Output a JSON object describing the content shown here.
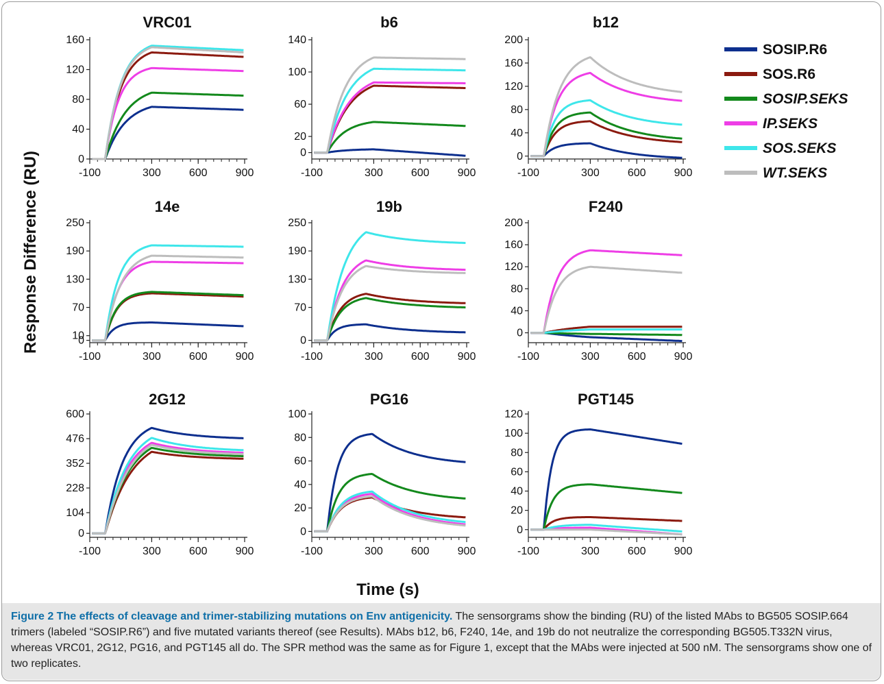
{
  "figure": {
    "ylabel": "Response Difference (RU)",
    "xlabel": "Time (s)"
  },
  "legend": {
    "entries": [
      {
        "label": "SOSIP.R6",
        "color": "#0d2f8e",
        "italic": false
      },
      {
        "label": "SOS.R6",
        "color": "#8b1a0f",
        "italic": false
      },
      {
        "label": "SOSIP.SEKS",
        "color": "#13891c",
        "italic": true
      },
      {
        "label": "IP.SEKS",
        "color": "#ee3ee6",
        "italic": true
      },
      {
        "label": "SOS.SEKS",
        "color": "#3ee6ea",
        "italic": true
      },
      {
        "label": "WT.SEKS",
        "color": "#bdbdbd",
        "italic": true
      }
    ]
  },
  "chart_data": [
    {
      "type": "line",
      "title": "VRC01",
      "xticks": [
        -100,
        300,
        600,
        900
      ],
      "yticks": [
        0,
        40,
        80,
        120,
        160
      ],
      "xlim": [
        -100,
        900
      ],
      "ylim": [
        0,
        160
      ],
      "series": [
        {
          "name": "SOSIP.R6",
          "shape": "plateau",
          "start": -20,
          "peak_t": 300,
          "peak": 70,
          "end": 66,
          "hl": 90
        },
        {
          "name": "SOS.R6",
          "shape": "plateau",
          "start": -20,
          "peak_t": 300,
          "peak": 143,
          "end": 137,
          "hl": 70
        },
        {
          "name": "SOSIP.SEKS",
          "shape": "plateau",
          "start": -20,
          "peak_t": 300,
          "peak": 89,
          "end": 85,
          "hl": 90
        },
        {
          "name": "IP.SEKS",
          "shape": "plateau",
          "start": -20,
          "peak_t": 300,
          "peak": 122,
          "end": 118,
          "hl": 60
        },
        {
          "name": "SOS.SEKS",
          "shape": "plateau",
          "start": -20,
          "peak_t": 300,
          "peak": 152,
          "end": 146,
          "hl": 70
        },
        {
          "name": "WT.SEKS",
          "shape": "plateau",
          "start": -20,
          "peak_t": 300,
          "peak": 150,
          "end": 143,
          "hl": 70
        }
      ]
    },
    {
      "type": "line",
      "title": "b6",
      "xticks": [
        -100,
        300,
        600,
        900
      ],
      "yticks": [
        0,
        20,
        60,
        100,
        140
      ],
      "xlim": [
        -100,
        900
      ],
      "ylim": [
        -8,
        140
      ],
      "series": [
        {
          "name": "SOSIP.R6",
          "shape": "plateau",
          "start": 20,
          "peak_t": 300,
          "peak": 4,
          "end": -4,
          "hl": 90
        },
        {
          "name": "SOS.R6",
          "shape": "plateau",
          "start": 20,
          "peak_t": 300,
          "peak": 83,
          "end": 80,
          "hl": 100
        },
        {
          "name": "SOSIP.SEKS",
          "shape": "plateau",
          "start": 20,
          "peak_t": 300,
          "peak": 38,
          "end": 33,
          "hl": 80
        },
        {
          "name": "IP.SEKS",
          "shape": "plateau",
          "start": 20,
          "peak_t": 300,
          "peak": 87,
          "end": 86,
          "hl": 100
        },
        {
          "name": "SOS.SEKS",
          "shape": "plateau",
          "start": 20,
          "peak_t": 300,
          "peak": 104,
          "end": 102,
          "hl": 90
        },
        {
          "name": "WT.SEKS",
          "shape": "plateau",
          "start": 20,
          "peak_t": 300,
          "peak": 118,
          "end": 116,
          "hl": 80
        }
      ]
    },
    {
      "type": "line",
      "title": "b12",
      "xticks": [
        -100,
        300,
        600,
        900
      ],
      "yticks": [
        0,
        40,
        80,
        120,
        160,
        200
      ],
      "xlim": [
        -100,
        900
      ],
      "ylim": [
        -5,
        200
      ],
      "series": [
        {
          "name": "SOSIP.R6",
          "shape": "decay",
          "start": -20,
          "peak_t": 300,
          "peak": 22,
          "end": -3,
          "hl": 50
        },
        {
          "name": "SOS.R6",
          "shape": "decay",
          "start": -20,
          "peak_t": 300,
          "peak": 60,
          "end": 24,
          "hl": 50
        },
        {
          "name": "SOSIP.SEKS",
          "shape": "decay",
          "start": -20,
          "peak_t": 300,
          "peak": 75,
          "end": 30,
          "hl": 50
        },
        {
          "name": "IP.SEKS",
          "shape": "decay",
          "start": -20,
          "peak_t": 300,
          "peak": 143,
          "end": 95,
          "hl": 60
        },
        {
          "name": "SOS.SEKS",
          "shape": "decay",
          "start": -20,
          "peak_t": 300,
          "peak": 96,
          "end": 54,
          "hl": 50
        },
        {
          "name": "WT.SEKS",
          "shape": "decay",
          "start": -20,
          "peak_t": 300,
          "peak": 170,
          "end": 110,
          "hl": 70
        }
      ]
    },
    {
      "type": "line",
      "title": "14e",
      "xticks": [
        -100,
        300,
        600,
        900
      ],
      "yticks": [
        0,
        10,
        70,
        130,
        190,
        250
      ],
      "xlim": [
        -100,
        900
      ],
      "ylim": [
        -5,
        250
      ],
      "series": [
        {
          "name": "SOSIP.R6",
          "shape": "plateau",
          "start": 20,
          "peak_t": 300,
          "peak": 38,
          "end": 30,
          "hl": 40
        },
        {
          "name": "SOS.R6",
          "shape": "plateau",
          "start": 20,
          "peak_t": 300,
          "peak": 100,
          "end": 93,
          "hl": 50
        },
        {
          "name": "SOSIP.SEKS",
          "shape": "plateau",
          "start": 20,
          "peak_t": 300,
          "peak": 103,
          "end": 96,
          "hl": 50
        },
        {
          "name": "IP.SEKS",
          "shape": "plateau",
          "start": 20,
          "peak_t": 300,
          "peak": 167,
          "end": 164,
          "hl": 60
        },
        {
          "name": "SOS.SEKS",
          "shape": "plateau",
          "start": 20,
          "peak_t": 300,
          "peak": 202,
          "end": 199,
          "hl": 60
        },
        {
          "name": "WT.SEKS",
          "shape": "plateau",
          "start": 20,
          "peak_t": 300,
          "peak": 180,
          "end": 176,
          "hl": 70
        }
      ]
    },
    {
      "type": "line",
      "title": "19b",
      "xticks": [
        -100,
        300,
        600,
        900
      ],
      "yticks": [
        0,
        70,
        130,
        190,
        250
      ],
      "xlim": [
        -100,
        900
      ],
      "ylim": [
        -5,
        250
      ],
      "series": [
        {
          "name": "SOSIP.R6",
          "shape": "decay",
          "start": 0,
          "peak_t": 250,
          "peak": 34,
          "end": 17,
          "hl": 40
        },
        {
          "name": "SOS.R6",
          "shape": "decay",
          "start": 0,
          "peak_t": 250,
          "peak": 99,
          "end": 79,
          "hl": 60
        },
        {
          "name": "SOSIP.SEKS",
          "shape": "decay",
          "start": 0,
          "peak_t": 250,
          "peak": 90,
          "end": 70,
          "hl": 60
        },
        {
          "name": "IP.SEKS",
          "shape": "decay",
          "start": 0,
          "peak_t": 250,
          "peak": 170,
          "end": 150,
          "hl": 70
        },
        {
          "name": "SOS.SEKS",
          "shape": "decay",
          "start": 0,
          "peak_t": 250,
          "peak": 230,
          "end": 207,
          "hl": 80
        },
        {
          "name": "WT.SEKS",
          "shape": "decay",
          "start": 0,
          "peak_t": 250,
          "peak": 158,
          "end": 143,
          "hl": 70
        }
      ]
    },
    {
      "type": "line",
      "title": "F240",
      "xticks": [
        -100,
        300,
        600,
        900
      ],
      "yticks": [
        0,
        40,
        80,
        120,
        160,
        200
      ],
      "xlim": [
        -100,
        900
      ],
      "ylim": [
        -18,
        200
      ],
      "series": [
        {
          "name": "SOSIP.R6",
          "shape": "plateau",
          "start": 10,
          "peak_t": 300,
          "peak": -8,
          "end": -15,
          "hl": 300
        },
        {
          "name": "SOS.R6",
          "shape": "plateau",
          "start": 10,
          "peak_t": 300,
          "peak": 11,
          "end": 11,
          "hl": 200
        },
        {
          "name": "SOSIP.SEKS",
          "shape": "plateau",
          "start": 10,
          "peak_t": 300,
          "peak": -2,
          "end": -4,
          "hl": 200
        },
        {
          "name": "IP.SEKS",
          "shape": "plateau",
          "start": 10,
          "peak_t": 300,
          "peak": 150,
          "end": 141,
          "hl": 60
        },
        {
          "name": "SOS.SEKS",
          "shape": "plateau",
          "start": 10,
          "peak_t": 300,
          "peak": 6,
          "end": 6,
          "hl": 200
        },
        {
          "name": "WT.SEKS",
          "shape": "plateau",
          "start": 10,
          "peak_t": 300,
          "peak": 120,
          "end": 109,
          "hl": 60
        }
      ]
    },
    {
      "type": "line",
      "title": "2G12",
      "xticks": [
        -100,
        300,
        600,
        900
      ],
      "yticks": [
        0,
        104,
        228,
        352,
        476,
        600
      ],
      "xlim": [
        -100,
        900
      ],
      "ylim": [
        -20,
        600
      ],
      "series": [
        {
          "name": "SOSIP.R6",
          "shape": "decay",
          "start": 20,
          "peak_t": 300,
          "peak": 530,
          "end": 478,
          "hl": 80
        },
        {
          "name": "SOS.R6",
          "shape": "decay",
          "start": 20,
          "peak_t": 300,
          "peak": 410,
          "end": 375,
          "hl": 120
        },
        {
          "name": "SOSIP.SEKS",
          "shape": "decay",
          "start": 20,
          "peak_t": 300,
          "peak": 430,
          "end": 388,
          "hl": 110
        },
        {
          "name": "IP.SEKS",
          "shape": "decay",
          "start": 20,
          "peak_t": 300,
          "peak": 455,
          "end": 405,
          "hl": 100
        },
        {
          "name": "SOS.SEKS",
          "shape": "decay",
          "start": 20,
          "peak_t": 300,
          "peak": 480,
          "end": 418,
          "hl": 100
        },
        {
          "name": "WT.SEKS",
          "shape": "decay",
          "start": 20,
          "peak_t": 300,
          "peak": 445,
          "end": 398,
          "hl": 110
        }
      ]
    },
    {
      "type": "line",
      "title": "PG16",
      "xticks": [
        -100,
        300,
        600,
        900
      ],
      "yticks": [
        0,
        20,
        40,
        60,
        80,
        100
      ],
      "xlim": [
        -100,
        900
      ],
      "ylim": [
        -5,
        100
      ],
      "series": [
        {
          "name": "SOSIP.R6",
          "shape": "decay",
          "start": 20,
          "peak_t": 290,
          "peak": 83,
          "end": 59,
          "hl": 45
        },
        {
          "name": "SOS.R6",
          "shape": "decay",
          "start": 20,
          "peak_t": 290,
          "peak": 29,
          "end": 12,
          "hl": 60
        },
        {
          "name": "SOSIP.SEKS",
          "shape": "decay",
          "start": 20,
          "peak_t": 290,
          "peak": 49,
          "end": 28,
          "hl": 50
        },
        {
          "name": "IP.SEKS",
          "shape": "decay",
          "start": 20,
          "peak_t": 290,
          "peak": 32,
          "end": 6,
          "hl": 60
        },
        {
          "name": "SOS.SEKS",
          "shape": "decay",
          "start": 20,
          "peak_t": 290,
          "peak": 34,
          "end": 8,
          "hl": 60
        },
        {
          "name": "WT.SEKS",
          "shape": "decay",
          "start": 20,
          "peak_t": 290,
          "peak": 30,
          "end": 5,
          "hl": 60
        }
      ]
    },
    {
      "type": "line",
      "title": "PGT145",
      "xticks": [
        -100,
        300,
        600,
        900
      ],
      "yticks": [
        0,
        20,
        40,
        60,
        80,
        100,
        120
      ],
      "xlim": [
        -100,
        900
      ],
      "ylim": [
        -8,
        120
      ],
      "series": [
        {
          "name": "SOSIP.R6",
          "shape": "plateau",
          "start": 5,
          "peak_t": 300,
          "peak": 104,
          "end": 89,
          "hl": 35
        },
        {
          "name": "SOS.R6",
          "shape": "plateau",
          "start": 5,
          "peak_t": 300,
          "peak": 13,
          "end": 9,
          "hl": 40
        },
        {
          "name": "SOSIP.SEKS",
          "shape": "plateau",
          "start": 5,
          "peak_t": 300,
          "peak": 47,
          "end": 38,
          "hl": 40
        },
        {
          "name": "IP.SEKS",
          "shape": "plateau",
          "start": 5,
          "peak_t": 300,
          "peak": 2,
          "end": -5,
          "hl": 60
        },
        {
          "name": "SOS.SEKS",
          "shape": "plateau",
          "start": 5,
          "peak_t": 300,
          "peak": 5,
          "end": -2,
          "hl": 60
        },
        {
          "name": "WT.SEKS",
          "shape": "plateau",
          "start": 5,
          "peak_t": 300,
          "peak": 0,
          "end": -5,
          "hl": 60
        }
      ]
    }
  ],
  "caption": {
    "title": "Figure 2 The effects of cleavage and trimer-stabilizing mutations on Env antigenicity.",
    "text": "The sensorgrams show the binding (RU) of the listed MAbs to BG505 SOSIP.664 trimers (labeled “SOSIP.R6”) and five mutated variants thereof (see Results). MAbs b12, b6, F240, 14e, and 19b do not neutralize the corresponding BG505.T332N virus, whereas VRC01, 2G12, PG16, and PGT145 all do. The SPR method was the same as for Figure 1, except that the MAbs were injected at 500 nM. The sensorgrams show one of two replicates."
  }
}
